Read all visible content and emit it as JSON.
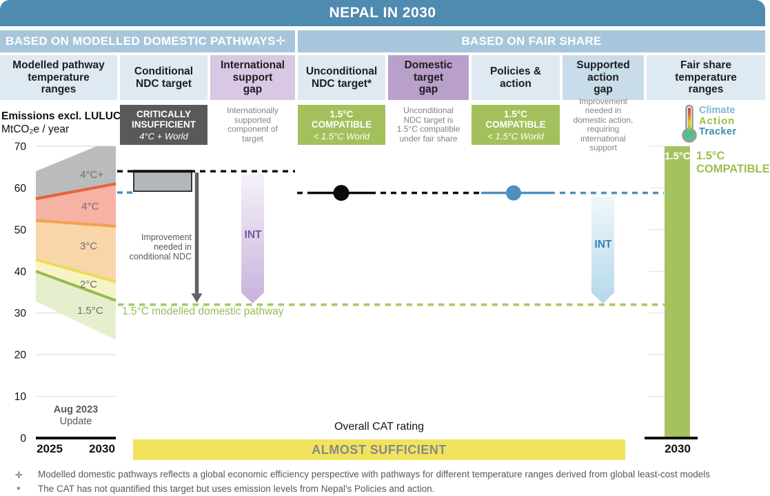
{
  "title": "NEPAL IN 2030",
  "sections": {
    "left": "BASED ON MODELLED DOMESTIC PATHWAYS✛",
    "right": "BASED ON FAIR SHARE"
  },
  "columns": [
    {
      "label": "Modelled pathway\ntemperature\nranges"
    },
    {
      "label": "Conditional\nNDC target"
    },
    {
      "label": "International\nsupport\ngap"
    },
    {
      "label": "Unconditional\nNDC target*"
    },
    {
      "label": "Domestic\ntarget\ngap"
    },
    {
      "label": "Policies &\naction"
    },
    {
      "label": "Supported\naction\ngap"
    },
    {
      "label": "Fair share\ntemperature\nranges"
    }
  ],
  "axis_label": {
    "line1": "Emissions excl. LULUCF",
    "line2": "MtCO₂e / year"
  },
  "ratings": {
    "conditional_ndc": {
      "label": "CRITICALLY\nINSUFFICIENT",
      "world": "4°C + World",
      "bg": "#58595b"
    },
    "international_support_gap_note": "Internationally\nsupported\ncomponent of\ntarget",
    "unconditional_ndc": {
      "label": "1.5°C\nCOMPATIBLE",
      "world": "< 1.5°C World",
      "bg": "#a3c05c"
    },
    "domestic_target_gap_note": "Unconditional\nNDC target is\n1.5°C compatible\nunder fair share",
    "policies_action": {
      "label": "1.5°C\nCOMPATIBLE",
      "world": "< 1.5°C World",
      "bg": "#a3c05c"
    },
    "supported_action_gap_note": "Improvement\nneeded in\ndomestic action,\nrequiring\ninternational\nsupport",
    "fair_share": {
      "bar_label": "1.5°C",
      "side_label": "1.5°C\nCOMPATIBLE"
    }
  },
  "logo": {
    "line1": "Climate",
    "line2": "Action",
    "line3": "Tracker"
  },
  "annotations": {
    "improvement_arrow": "Improvement\nneeded in\nconditional NDC",
    "int_label_international": "INT",
    "int_label_supported": "INT",
    "pathway_label": "1.5°C modelled domestic pathway"
  },
  "x_axis": {
    "left_start": "2025",
    "left_end": "2030",
    "right_end": "2030",
    "update_line1": "Aug 2023",
    "update_line2": "Update"
  },
  "overall": {
    "heading": "Overall CAT rating",
    "rating": "ALMOST SUFFICIENT",
    "bg": "#f1e35e"
  },
  "footnotes": [
    {
      "symbol": "✛",
      "text": "Modelled domestic pathways reflects a global economic efficiency perspective with pathways for different temperature ranges derived from global least-cost models"
    },
    {
      "symbol": "*",
      "text": "The CAT has not quantified this target but uses emission levels from Nepal's Policies and action."
    }
  ],
  "chart_data": {
    "type": "area",
    "title": "NEPAL IN 2030",
    "ylabel": "Emissions excl. LULUCF MtCO₂e / year",
    "x_range_years": [
      2025,
      2030
    ],
    "ylim": [
      0,
      70
    ],
    "yticks": [
      70,
      60,
      50,
      40,
      30,
      20,
      10,
      0
    ],
    "grid_values": [
      70,
      60,
      50,
      40,
      30,
      20,
      10
    ],
    "bands": [
      {
        "label": "4°C+",
        "fill": "#babbbd",
        "points": [
          [
            2025,
            64
          ],
          [
            2028.8,
            70
          ],
          [
            2030,
            70
          ],
          [
            2030,
            61
          ],
          [
            2025,
            57.4
          ]
        ],
        "label_at": [
          2028.5,
          63.2
        ]
      },
      {
        "label": "4°C",
        "fill": "#f6b2a3",
        "points": [
          [
            2025,
            57.4
          ],
          [
            2030,
            61
          ],
          [
            2030,
            50.8
          ],
          [
            2025,
            52.2
          ]
        ],
        "label_at": [
          2028.4,
          55.6
        ]
      },
      {
        "label": "3°C",
        "fill": "#f9d5aa",
        "points": [
          [
            2025,
            52.2
          ],
          [
            2030,
            50.8
          ],
          [
            2030,
            37.5
          ],
          [
            2025,
            42.8
          ]
        ],
        "label_at": [
          2028.3,
          46.1
        ]
      },
      {
        "label": "2°C",
        "fill": "#f7f3c4",
        "points": [
          [
            2025,
            42.8
          ],
          [
            2030,
            37.5
          ],
          [
            2030,
            33
          ],
          [
            2025,
            40
          ]
        ],
        "label_at": [
          2028.3,
          36.9
        ]
      },
      {
        "label": "1.5°C",
        "fill": "#e5efce",
        "points": [
          [
            2025,
            40
          ],
          [
            2030,
            33
          ],
          [
            2030,
            23.5
          ],
          [
            2025,
            32.8
          ]
        ],
        "label_at": [
          2028.4,
          30.6
        ]
      }
    ],
    "boundary_lines": [
      {
        "color": "#e8613d",
        "from": [
          2025,
          57.4
        ],
        "to": [
          2030,
          61
        ]
      },
      {
        "color": "#f2a14d",
        "from": [
          2025,
          52.2
        ],
        "to": [
          2030,
          50.8
        ]
      },
      {
        "color": "#eadd55",
        "from": [
          2025,
          42.8
        ],
        "to": [
          2030,
          37.5
        ]
      },
      {
        "color": "#94bc4e",
        "from": [
          2025,
          40
        ],
        "to": [
          2030,
          33
        ]
      }
    ],
    "markers": {
      "conditional_ndc_range": {
        "top": 64,
        "bottom": 59.2
      },
      "unconditional_ndc_level": 58.8,
      "policies_action_level": 58.8,
      "modelled_pathway_1_5": 32,
      "fair_share_bar": {
        "top": 70,
        "bottom": 0,
        "color": "#a6c25e"
      }
    },
    "colors": {
      "policies_blue": "#4e8fbe",
      "pathway_green": "#a5cc62",
      "arrow_gray": "#606265",
      "int_purple_light": "#f5f1f8",
      "int_purple_dark": "#c7b2dc",
      "int_blue_light": "#f0f7fb",
      "int_blue_dark": "#b5d8eb",
      "conditional_box_fill": "#b3b7b9"
    }
  }
}
